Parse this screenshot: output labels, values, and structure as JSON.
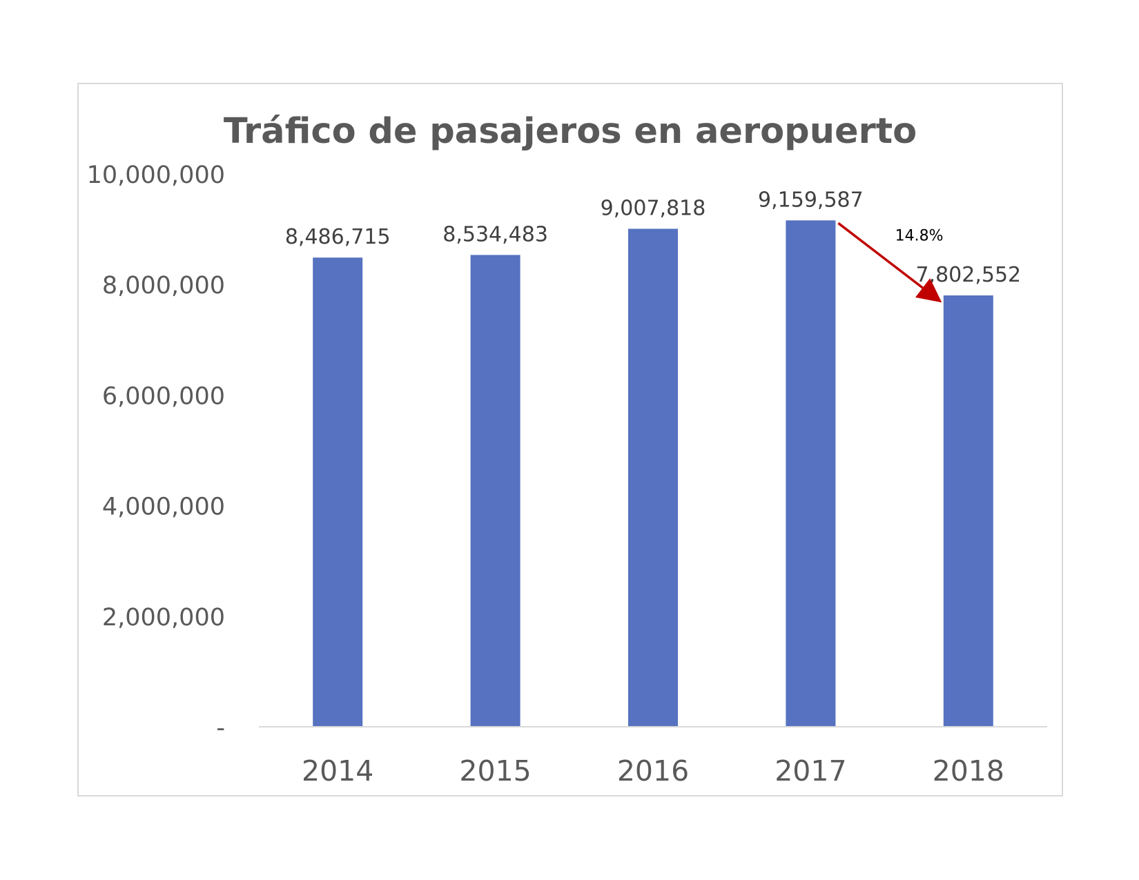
{
  "chart_data": {
    "type": "bar",
    "title": "Tráfico de pasajeros en aeropuerto",
    "xlabel": "",
    "ylabel": "",
    "categories": [
      "2014",
      "2015",
      "2016",
      "2017",
      "2018"
    ],
    "values": [
      8486715,
      8534483,
      9007818,
      9159587,
      7802552
    ],
    "data_labels": [
      "8,486,715",
      "8,534,483",
      "9,007,818",
      "9,159,587",
      "7,802,552"
    ],
    "ylim": [
      0,
      10000000
    ],
    "yticks": [
      0,
      2000000,
      4000000,
      6000000,
      8000000,
      10000000
    ],
    "ytick_labels": [
      "-",
      "2,000,000",
      "4,000,000",
      "6,000,000",
      "8,000,000",
      "10,000,000"
    ],
    "grid": false,
    "legend": "none",
    "bar_color": "#5672c0",
    "annotations": [
      {
        "type": "arrow",
        "from_category": "2017",
        "to_category": "2018",
        "text": "14.8%",
        "color": "#c00000"
      }
    ]
  }
}
